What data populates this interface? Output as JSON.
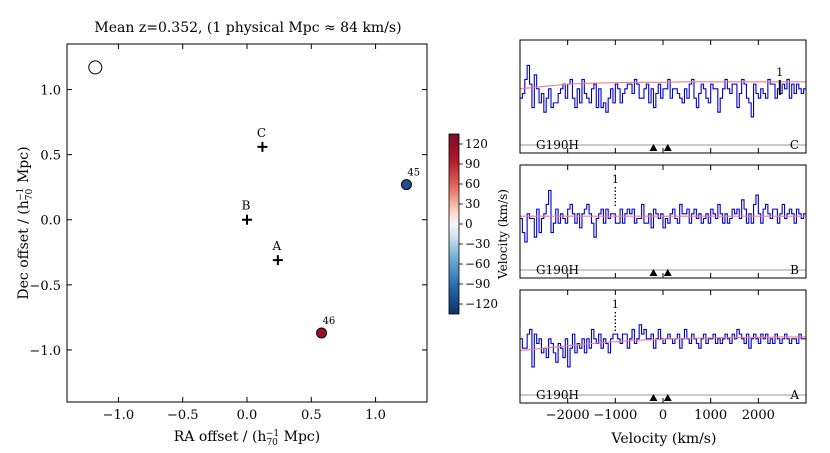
{
  "chart_data": [
    {
      "type": "scatter",
      "title": "Mean z=0.352, (1 physical Mpc ≈ 84 km/s)",
      "xlabel": "RA offset / (h",
      "xlabel_sub": "70",
      "xlabel_sup": "−1",
      "xlabel_tail": " Mpc)",
      "ylabel": "Dec offset  / (h",
      "ylabel_sub": "70",
      "ylabel_sup": "−1",
      "ylabel_tail": " Mpc)",
      "xlim": [
        -1.4,
        1.4
      ],
      "ylim": [
        -1.4,
        1.35
      ],
      "xticks": [
        -1.0,
        -0.5,
        0.0,
        0.5,
        1.0
      ],
      "xtick_labels": [
        "−1.0",
        "−0.5",
        "0.0",
        "0.5",
        "1.0"
      ],
      "yticks": [
        1.0,
        0.5,
        0.0,
        -0.5,
        -1.0
      ],
      "ytick_labels": [
        "1.0",
        "0.5",
        "0.0",
        "−0.5",
        "−1.0"
      ],
      "sightlines": [
        {
          "label": "C",
          "x": 0.12,
          "y": 0.56
        },
        {
          "label": "B",
          "x": 0.0,
          "y": 0.0
        },
        {
          "label": "A",
          "x": 0.24,
          "y": -0.31
        }
      ],
      "galaxies": [
        {
          "label": "45",
          "x": 1.24,
          "y": 0.27,
          "velocity": -120,
          "color": "#1f4e8c"
        },
        {
          "label": "46",
          "x": 0.58,
          "y": -0.87,
          "velocity": 130,
          "color": "#9e0f2c"
        },
        {
          "label": "",
          "x": -1.18,
          "y": 1.17,
          "velocity": null,
          "color": "#ffffff"
        }
      ],
      "colorbar": {
        "label": "Velocity (km/s)",
        "range": [
          -135,
          135
        ],
        "ticks": [
          120,
          90,
          60,
          30,
          0,
          -30,
          -60,
          -90,
          -120
        ],
        "tick_labels": [
          "120",
          "90",
          "60",
          "30",
          "0",
          "−30",
          "−60",
          "−90",
          "−120"
        ]
      }
    },
    {
      "type": "line",
      "xlabel": "Velocity (km/s)",
      "xlim": [
        -3000,
        3000
      ],
      "xticks": [
        -2000,
        -1000,
        0,
        1000,
        2000
      ],
      "xtick_labels": [
        "−2000",
        "−1000",
        "0",
        "1000",
        "2000"
      ],
      "line_color": "#0000cc",
      "fit_color": "#f08080",
      "markers_velocity": [
        -200,
        100
      ],
      "panels": [
        {
          "grating": "G190H",
          "sightline": "C",
          "line_marker": {
            "label": "1",
            "velocity": 2450,
            "style": "solid"
          },
          "ylim": [
            0,
            2.2
          ],
          "flux": [
            1.0,
            1.1,
            1.4,
            1.7,
            1.3,
            0.8,
            1.5,
            1.2,
            0.9,
            1.1,
            0.7,
            1.0,
            1.2,
            0.8,
            0.9,
            0.9,
            1.1,
            1.2,
            1.3,
            1.0,
            1.3,
            1.4,
            1.0,
            0.8,
            1.2,
            0.9,
            1.4,
            1.1,
            1.0,
            0.9,
            1.2,
            1.3,
            0.8,
            1.2,
            0.8,
            0.9,
            0.7,
            1.0,
            1.2,
            0.9,
            1.3,
            1.2,
            0.9,
            1.1,
            1.2,
            1.3,
            1.3,
            1.1,
            1.4,
            1.3,
            1.0,
            1.0,
            1.2,
            1.3,
            0.9,
            1.2,
            0.8,
            1.1,
            1.3,
            1.0,
            1.2,
            1.2,
            1.4,
            1.0,
            1.2,
            1.2,
            1.1,
            1.0,
            0.9,
            1.2,
            1.0,
            1.3,
            1.4,
            1.0,
            0.8,
            1.1,
            1.3,
            1.2,
            1.0,
            0.9,
            1.3,
            1.2,
            1.2,
            0.7,
            1.0,
            1.2,
            1.4,
            1.2,
            1.1,
            1.3,
            1.3,
            0.8,
            1.1,
            1.4,
            1.3,
            1.0,
            0.9,
            0.6,
            1.3,
            1.1,
            1.0,
            1.2,
            1.1,
            1.0,
            1.4,
            1.3,
            1.3,
            1.0,
            1.2,
            1.1,
            1.3,
            1.2,
            1.4,
            1.0,
            1.3,
            1.1,
            1.3,
            1.2,
            1.1,
            1.2
          ],
          "fit": [
            1.2,
            1.25,
            1.3,
            1.32,
            1.33,
            1.34,
            1.34,
            1.35,
            1.35,
            1.35,
            1.35,
            1.35,
            1.35
          ]
        },
        {
          "grating": "G190H",
          "sightline": "B",
          "line_marker": {
            "label": "1",
            "velocity": -1000,
            "style": "dotted"
          },
          "ylim": [
            0,
            2.2
          ],
          "flux": [
            1.1,
            0.8,
            0.6,
            1.2,
            1.1,
            1.1,
            0.7,
            1.3,
            0.8,
            1.1,
            1.2,
            1.4,
            1.7,
            0.8,
            1.0,
            1.3,
            1.0,
            1.2,
            1.1,
            1.0,
            1.3,
            1.4,
            1.2,
            1.0,
            1.2,
            0.9,
            1.2,
            1.3,
            1.4,
            1.2,
            1.0,
            0.7,
            1.1,
            1.2,
            1.3,
            1.0,
            1.3,
            1.1,
            1.2,
            1.2,
            1.0,
            1.0,
            1.3,
            1.0,
            1.2,
            1.3,
            1.2,
            1.3,
            1.0,
            1.1,
            1.1,
            1.4,
            1.0,
            1.0,
            1.2,
            0.9,
            1.3,
            1.2,
            1.1,
            1.2,
            0.9,
            1.1,
            1.0,
            1.2,
            1.3,
            1.1,
            1.0,
            1.4,
            1.2,
            1.2,
            1.3,
            1.0,
            1.2,
            1.3,
            1.1,
            1.2,
            1.0,
            1.1,
            1.2,
            1.0,
            1.3,
            1.2,
            1.1,
            1.4,
            1.2,
            1.0,
            1.2,
            1.0,
            1.1,
            1.3,
            1.2,
            1.3,
            1.1,
            1.5,
            1.3,
            1.0,
            1.2,
            1.0,
            1.4,
            1.6,
            1.2,
            1.0,
            1.3,
            1.4,
            1.2,
            1.1,
            1.3,
            1.3,
            1.0,
            1.2,
            1.4,
            1.1,
            1.2,
            1.3,
            1.2,
            1.0,
            1.3,
            1.2,
            1.1,
            1.2
          ],
          "fit": [
            1.15,
            1.15,
            1.15,
            1.15,
            1.15,
            1.15,
            1.15,
            1.15,
            1.15,
            1.15,
            1.15,
            1.15,
            1.15
          ]
        },
        {
          "grating": "G190H",
          "sightline": "A",
          "line_marker": {
            "label": "1",
            "velocity": -1000,
            "style": "dotted"
          },
          "ylim": [
            0,
            2.2
          ],
          "flux": [
            1.2,
            1.0,
            1.0,
            1.3,
            1.4,
            0.6,
            1.3,
            1.1,
            1.2,
            0.9,
            1.0,
            0.8,
            1.2,
            1.1,
            0.9,
            0.7,
            1.1,
            1.0,
            0.8,
            1.2,
            0.6,
            1.0,
            1.3,
            0.9,
            1.1,
            1.0,
            1.2,
            0.9,
            1.2,
            1.0,
            1.4,
            1.2,
            1.1,
            1.3,
            1.0,
            1.2,
            1.1,
            0.9,
            1.2,
            1.3,
            1.3,
            1.2,
            1.1,
            1.3,
            1.3,
            1.0,
            1.2,
            1.4,
            1.1,
            1.2,
            1.5,
            1.3,
            1.4,
            1.2,
            1.2,
            1.3,
            1.0,
            1.2,
            1.4,
            1.2,
            1.1,
            1.2,
            1.3,
            1.2,
            1.1,
            1.2,
            1.3,
            1.0,
            1.2,
            1.4,
            1.2,
            1.1,
            1.3,
            1.2,
            1.1,
            1.0,
            1.2,
            1.3,
            1.1,
            1.2,
            1.2,
            1.3,
            1.1,
            1.2,
            1.1,
            1.2,
            1.3,
            1.2,
            1.1,
            1.3,
            1.2,
            1.4,
            1.3,
            1.2,
            1.1,
            1.3,
            1.0,
            1.2,
            1.3,
            1.2,
            1.1,
            1.3,
            1.2,
            1.3,
            1.1,
            1.2,
            1.1,
            1.3,
            1.2,
            1.1,
            1.2,
            1.3,
            1.2,
            1.1,
            1.2,
            1.2,
            1.1,
            1.3,
            1.2,
            1.2
          ],
          "fit": [
            0.95,
            1.0,
            1.05,
            1.1,
            1.14,
            1.17,
            1.19,
            1.21,
            1.22,
            1.23,
            1.23,
            1.24,
            1.24
          ]
        }
      ]
    }
  ]
}
